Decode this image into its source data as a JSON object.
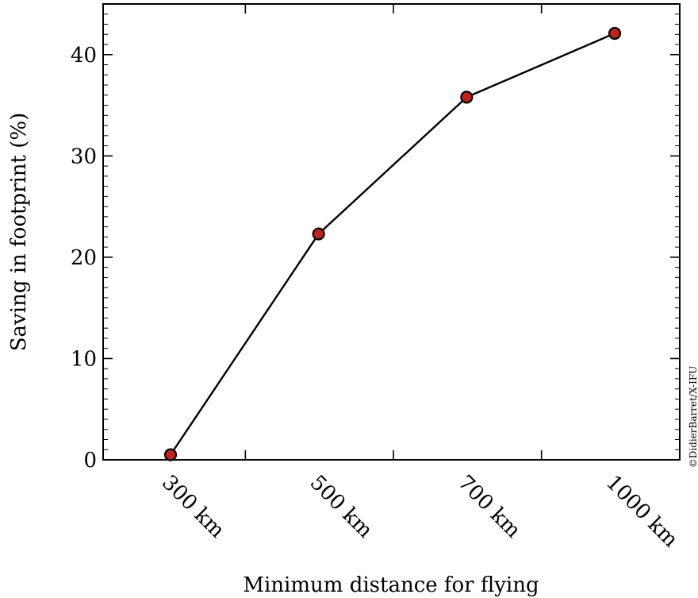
{
  "chart_data": {
    "type": "line",
    "title": "",
    "xlabel": "Minimum distance for flying",
    "ylabel": "Saving in footprint (%)",
    "categories": [
      "300 km",
      "500 km",
      "700 km",
      "1000 km"
    ],
    "series": [
      {
        "values": [
          0.5,
          22.3,
          35.8,
          42.1
        ],
        "line_color": "#000000",
        "marker_color": "#c0231a"
      }
    ],
    "ylim": [
      0,
      45
    ],
    "yticks": [
      0,
      10,
      20,
      30,
      40
    ],
    "grid": false,
    "legend": "none"
  },
  "credit": "©DidierBarret/X-IFU"
}
